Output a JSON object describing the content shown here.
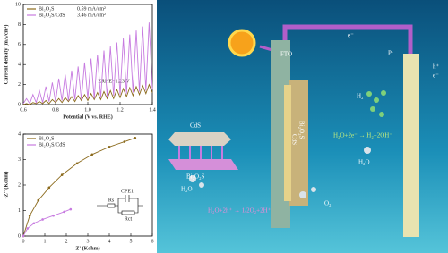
{
  "chart_data": [
    {
      "type": "line",
      "ylabel": "Current density (mA/cm²)",
      "xlabel": "Potential (V vs. RHE)",
      "xlim": [
        0.6,
        1.4
      ],
      "xticks": [
        0.6,
        0.8,
        {
          "value": 1,
          "label": "1.0"
        },
        1.2,
        1.4
      ],
      "ylim": [
        0,
        10
      ],
      "yticks": [
        0,
        2,
        4,
        6,
        8,
        10
      ],
      "x": [
        0.6,
        0.62,
        0.64,
        0.66,
        0.68,
        0.7,
        0.72,
        0.74,
        0.76,
        0.78,
        0.8,
        0.82,
        0.84,
        0.86,
        0.88,
        0.9,
        0.92,
        0.94,
        0.96,
        0.98,
        1,
        1.02,
        1.04,
        1.06,
        1.08,
        1.1,
        1.12,
        1.14,
        1.16,
        1.18,
        1.2,
        1.22,
        1.24,
        1.26,
        1.28,
        1.3,
        1.32,
        1.34,
        1.36,
        1.38,
        1.4
      ],
      "series": [
        {
          "name": "Bi₂O₂S",
          "legend_value": "0.59 mA/cm²",
          "color": "#8b6a1c",
          "values": [
            0,
            0.1,
            0,
            0.2,
            0.1,
            0.3,
            0.1,
            0.4,
            0.1,
            0.5,
            0.2,
            0.6,
            0.2,
            0.7,
            0.3,
            0.8,
            0.3,
            0.9,
            0.4,
            1.0,
            0.4,
            1.1,
            0.5,
            1.2,
            0.5,
            1.3,
            0.6,
            1.4,
            0.6,
            1.5,
            0.7,
            1.6,
            0.8,
            1.7,
            0.9,
            1.8,
            1.0,
            1.9,
            1.1,
            2.0,
            1.2
          ]
        },
        {
          "name": "Bi₂O₂S/CdS",
          "legend_value": "3.46 mA/cm²",
          "color": "#c77be0",
          "values": [
            0.1,
            0.6,
            0.1,
            1.0,
            0.2,
            1.4,
            0.2,
            1.8,
            0.3,
            2.2,
            0.3,
            2.6,
            0.4,
            3.0,
            0.4,
            3.4,
            0.5,
            3.8,
            0.5,
            4.2,
            0.6,
            4.6,
            0.6,
            5.0,
            0.7,
            5.4,
            0.8,
            5.8,
            0.9,
            6.2,
            1.0,
            6.6,
            1.1,
            7.0,
            1.2,
            7.4,
            1.3,
            7.8,
            1.4,
            8.2,
            1.5
          ]
        }
      ],
      "vline": {
        "x": 1.23,
        "label": "ERHE=1.23 V"
      }
    },
    {
      "type": "line",
      "markers": true,
      "ylabel": "-Z'' (Kohm)",
      "xlabel": "Z' (Kohm)",
      "xlim": [
        0,
        6
      ],
      "xticks": [
        0,
        1,
        2,
        3,
        4,
        5,
        6
      ],
      "ylim": [
        0,
        4
      ],
      "yticks": [
        0,
        1,
        2,
        3,
        4
      ],
      "series": [
        {
          "name": "Bi₂O₂S",
          "color": "#8b6a1c",
          "x": [
            0,
            0.3,
            0.7,
            1.2,
            1.8,
            2.5,
            3.2,
            4.0,
            4.7,
            5.2
          ],
          "values": [
            0,
            0.8,
            1.4,
            1.9,
            2.4,
            2.85,
            3.2,
            3.5,
            3.7,
            3.85
          ]
        },
        {
          "name": "Bi₂O₂S/CdS",
          "color": "#c77be0",
          "x": [
            0,
            0.2,
            0.5,
            0.9,
            1.4,
            1.9,
            2.2
          ],
          "values": [
            0,
            0.3,
            0.5,
            0.65,
            0.8,
            0.95,
            1.05
          ]
        }
      ],
      "circuit": [
        "Rs",
        "CPE1",
        "Rct"
      ]
    }
  ],
  "diagram": {
    "fto": "FTO",
    "pt": "Pt",
    "cds": "CdS",
    "bi2o2s": "Bi₂O₂S",
    "inset_cds": "CdS",
    "inset_bi": "Bi₂O₂S",
    "h_plus": "h⁺",
    "e_minus": "e⁻",
    "e_wire": "e⁻",
    "h2": "H₂",
    "h2o_left": "H₂O",
    "h2o_right": "H₂O",
    "o2": "O₂",
    "reaction_her": "H₂O+2e⁻ → H₂+2OH⁻",
    "reaction_oer": "H₂O+2h⁺ → 1/2O₂+2H⁺"
  }
}
